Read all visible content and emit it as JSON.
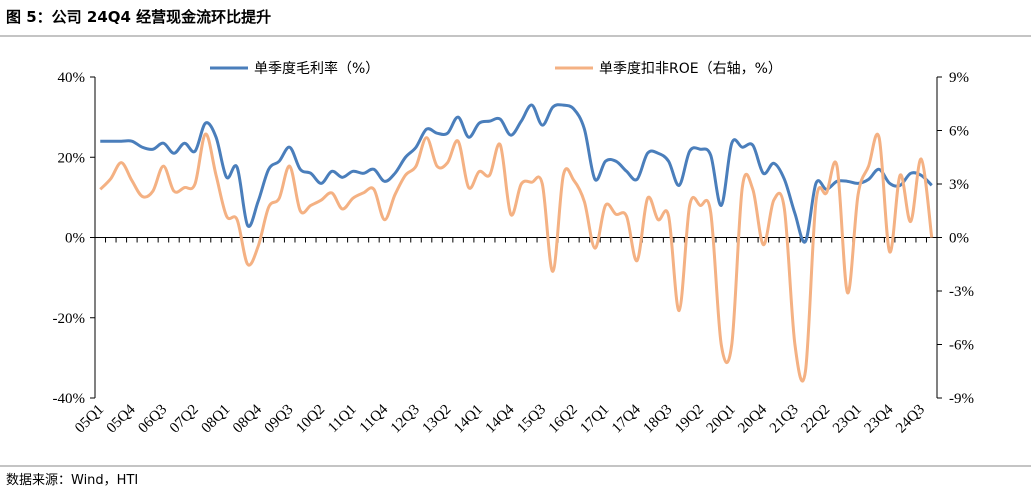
{
  "chart_data": {
    "type": "line",
    "title": "图 5：公司 24Q4 经营现金流环比提升",
    "source": "数据来源：Wind，HTI",
    "categories": [
      "05Q1",
      null,
      null,
      "05Q4",
      null,
      null,
      "06Q3",
      null,
      null,
      "07Q2",
      null,
      null,
      "08Q1",
      null,
      null,
      "08Q4",
      null,
      null,
      "09Q3",
      null,
      null,
      "10Q2",
      null,
      null,
      "11Q1",
      null,
      null,
      "11Q4",
      null,
      null,
      "12Q3",
      null,
      null,
      "13Q2",
      null,
      null,
      "14Q1",
      null,
      null,
      "14Q4",
      null,
      null,
      "15Q3",
      null,
      null,
      "16Q2",
      null,
      null,
      "17Q1",
      null,
      null,
      "17Q4",
      null,
      null,
      "18Q3",
      null,
      null,
      "19Q2",
      null,
      null,
      "20Q1",
      null,
      null,
      "20Q4",
      null,
      null,
      "21Q3",
      null,
      null,
      "22Q2",
      null,
      null,
      "23Q1",
      null,
      null,
      "23Q4",
      null,
      null,
      "24Q3",
      null
    ],
    "series": [
      {
        "name": "单季度毛利率（%）",
        "color": "#4a7ebb",
        "axis": "y",
        "values": [
          24,
          24,
          24,
          24,
          22.5,
          22,
          23.5,
          21,
          23.5,
          21.5,
          28.5,
          25,
          15,
          17.5,
          3,
          9,
          17,
          19,
          22.5,
          17,
          16,
          13.5,
          16.5,
          15,
          16.5,
          16,
          17,
          14,
          16,
          20,
          22.5,
          27,
          26,
          26,
          30,
          25,
          28.5,
          29,
          29.5,
          25.5,
          29,
          33,
          28,
          32.5,
          33,
          32,
          27,
          14.5,
          19,
          19,
          16.5,
          14.5,
          21,
          21,
          19,
          13,
          21.5,
          22,
          20.5,
          8,
          23.5,
          22.5,
          23,
          16,
          18.5,
          14.5,
          6,
          -1,
          13.5,
          12,
          14,
          14,
          13.5,
          14.5,
          17,
          13.5,
          13,
          16,
          15.5,
          13
        ]
      },
      {
        "name": "单季度扣非ROE（右轴，%）",
        "color": "#f4b183",
        "axis": "y2",
        "values": [
          2.7,
          3.3,
          4.2,
          3.2,
          2.3,
          2.6,
          4.0,
          2.6,
          2.8,
          3.0,
          5.8,
          3.5,
          1.2,
          1.0,
          -1.5,
          -0.5,
          1.7,
          2.2,
          4.0,
          1.5,
          1.8,
          2.1,
          2.5,
          1.6,
          2.2,
          2.5,
          2.7,
          1.0,
          2.4,
          3.5,
          4.0,
          5.6,
          4.0,
          4.2,
          5.4,
          2.8,
          3.7,
          3.5,
          5.2,
          1.3,
          3.0,
          3.1,
          3.0,
          -1.9,
          3.5,
          3.2,
          2.0,
          -0.6,
          1.8,
          1.3,
          1.2,
          -1.3,
          2.2,
          1.0,
          1.2,
          -4.1,
          1.8,
          1.8,
          1.4,
          -6.0,
          -6.0,
          2.8,
          2.7,
          -0.4,
          2.1,
          1.6,
          -6.0,
          -7.5,
          2.0,
          2.5,
          4.0,
          -3.1,
          2.4,
          4.0,
          5.6,
          -0.8,
          3.5,
          0.9,
          4.4,
          0.0
        ]
      }
    ],
    "ylim": [
      -40,
      40
    ],
    "yticks": [
      {
        "value": -40,
        "label": "-40%"
      },
      {
        "value": -20,
        "label": "-20%"
      },
      {
        "value": 0,
        "label": "0%"
      },
      {
        "value": 20,
        "label": "20%"
      },
      {
        "value": 40,
        "label": "40%"
      }
    ],
    "y2lim": [
      -9,
      9
    ],
    "y2ticks": [
      {
        "value": -9,
        "label": "-9%"
      },
      {
        "value": -6,
        "label": "-6%"
      },
      {
        "value": -3,
        "label": "-3%"
      },
      {
        "value": 0,
        "label": "0%"
      },
      {
        "value": 3,
        "label": "3%"
      },
      {
        "value": 6,
        "label": "6%"
      },
      {
        "value": 9,
        "label": "9%"
      }
    ],
    "grid": false
  }
}
